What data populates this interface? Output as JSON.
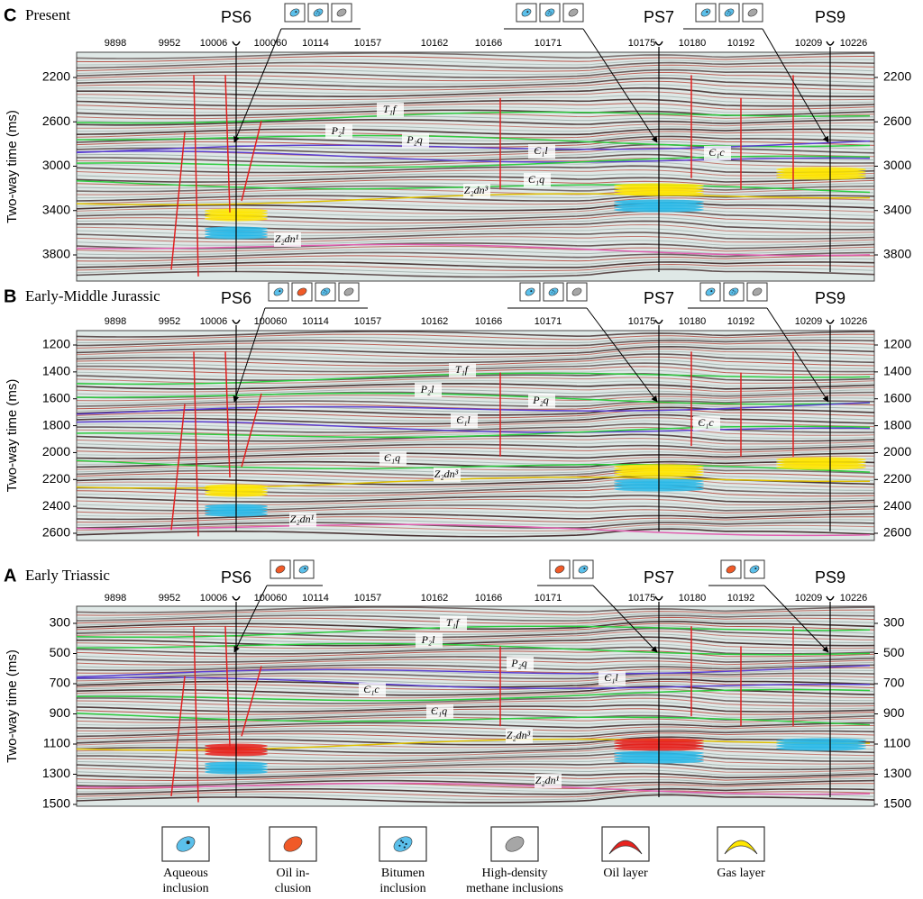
{
  "panels": [
    {
      "letter": "C",
      "title": "Present",
      "wells": [
        "PS6",
        "PS7",
        "PS9"
      ],
      "traces": [
        "9898",
        "9952",
        "10006",
        "100060",
        "10114",
        "10157",
        "10162",
        "10166",
        "10171",
        "10175",
        "10180",
        "10192",
        "10209",
        "10226"
      ],
      "yticks": [
        2200,
        2600,
        3000,
        3400,
        3800
      ],
      "y_label": "Two-way time (ms)",
      "horizons": [
        "T₁f",
        "P₂l",
        "P₂q",
        "Є₁l",
        "Є₁c",
        "Є₁q",
        "Z₂dn³",
        "Z₂dn¹"
      ]
    },
    {
      "letter": "B",
      "title": "Early-Middle Jurassic",
      "wells": [
        "PS6",
        "PS7",
        "PS9"
      ],
      "traces": [
        "9898",
        "9952",
        "10006",
        "100060",
        "10114",
        "10157",
        "10162",
        "10166",
        "10171",
        "10175",
        "10180",
        "10192",
        "10209",
        "10226"
      ],
      "yticks": [
        1200,
        1400,
        1600,
        1800,
        2000,
        2200,
        2400,
        2600
      ],
      "y_label": "Two-way time (ms)",
      "horizons": [
        "T₁f",
        "P₂l",
        "P₂q",
        "Є₁l",
        "Є₁c",
        "Є₁q",
        "Z₂dn³",
        "Z₂dn¹"
      ]
    },
    {
      "letter": "A",
      "title": "Early Triassic",
      "wells": [
        "PS6",
        "PS7",
        "PS9"
      ],
      "traces": [
        "9898",
        "9952",
        "10006",
        "100060",
        "10114",
        "10157",
        "10162",
        "10166",
        "10171",
        "10175",
        "10180",
        "10192",
        "10209",
        "10226"
      ],
      "yticks": [
        300,
        500,
        700,
        900,
        1100,
        1300,
        1500
      ],
      "y_label": "Two-way time (ms)",
      "horizons": [
        "T₁f",
        "P₂l",
        "P₂q",
        "Є₁l",
        "Є₁c",
        "Є₁q",
        "Z₂dn³",
        "Z₂dn¹"
      ]
    }
  ],
  "legend": [
    {
      "lines": [
        "Aqueous",
        "inclusion"
      ]
    },
    {
      "lines": [
        "Oil in-",
        "clusion"
      ]
    },
    {
      "lines": [
        "Bitumen",
        "inclusion"
      ]
    },
    {
      "lines": [
        "High-density",
        "methane inclusions"
      ]
    },
    {
      "lines": [
        "Oil layer"
      ]
    },
    {
      "lines": [
        "Gas layer"
      ]
    }
  ]
}
